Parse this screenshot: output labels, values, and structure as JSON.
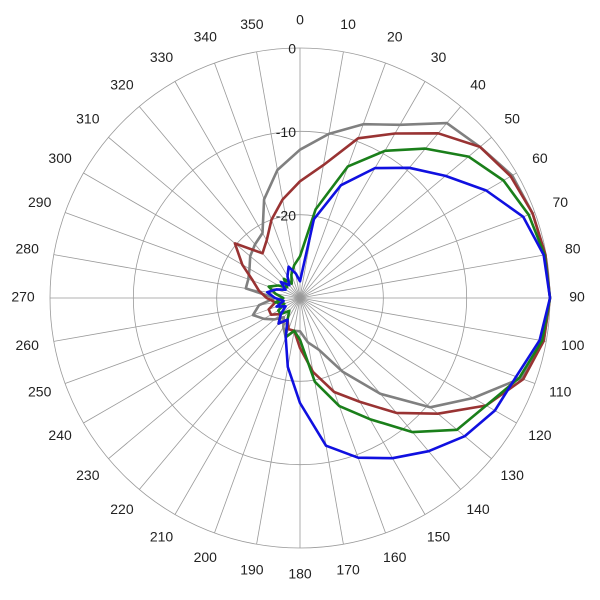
{
  "chart_data": {
    "type": "polar",
    "theta": [
      0,
      10,
      20,
      30,
      40,
      50,
      60,
      70,
      80,
      90,
      100,
      110,
      120,
      130,
      140,
      150,
      160,
      170,
      180,
      190,
      200,
      210,
      220,
      230,
      240,
      250,
      260,
      270,
      280,
      290,
      300,
      310,
      320,
      330,
      340,
      350
    ],
    "rlim": [
      -30,
      0
    ],
    "rticks": [
      0,
      -10,
      -20
    ],
    "grid": true,
    "series": [
      {
        "color": "#808080",
        "values": [
          -12.2,
          -10,
          -7.8,
          -6,
          -2.6,
          -1.8,
          -0.6,
          -0.3,
          -0.1,
          0,
          -0.3,
          -1.8,
          -6,
          -9.6,
          -15,
          -19.8,
          -23.4,
          -24.6,
          -26,
          -26,
          -25,
          -26,
          -27,
          -26,
          -25,
          -24,
          -25,
          -27,
          -23.4,
          -23.4,
          -23,
          -22.2,
          -21.6,
          -21,
          -17.4,
          -14.4
        ]
      },
      {
        "color": "#993333",
        "values": [
          -16,
          -13.8,
          -9.6,
          -7.2,
          -4.2,
          -1.8,
          -0.8,
          -0.3,
          -0.1,
          0,
          -0.3,
          -1.5,
          -4.2,
          -8.4,
          -12,
          -15.6,
          -18,
          -21,
          -24,
          -26,
          -26,
          -27,
          -26,
          -27,
          -26,
          -26,
          -27,
          -26,
          -25,
          -24,
          -22,
          -19.8,
          -23,
          -22,
          -20,
          -18
        ]
      },
      {
        "color": "#1a7f1a",
        "values": [
          -25,
          -19.2,
          -13.2,
          -9.6,
          -6.6,
          -3.6,
          -1.8,
          -0.8,
          -0.2,
          0,
          -0.5,
          -2,
          -4.2,
          -5.4,
          -9,
          -13.2,
          -16.2,
          -19.8,
          -25,
          -26,
          -25,
          -27,
          -28,
          -27,
          -27,
          -28,
          -27,
          -28,
          -27,
          -26,
          -27,
          -28,
          -27,
          -28,
          -27,
          -26
        ]
      },
      {
        "color": "#1010e0",
        "values": [
          -28,
          -20.4,
          -15.6,
          -12,
          -9.6,
          -7.2,
          -4.2,
          -1.5,
          -0.3,
          0,
          -0.8,
          -2.4,
          -3,
          -4.2,
          -6,
          -7.8,
          -9.6,
          -12,
          -17.4,
          -21.6,
          -25,
          -27,
          -26,
          -27,
          -28,
          -27,
          -28,
          -27,
          -26,
          -27,
          -28,
          -27,
          -28,
          -27,
          -26,
          -27
        ]
      }
    ]
  }
}
